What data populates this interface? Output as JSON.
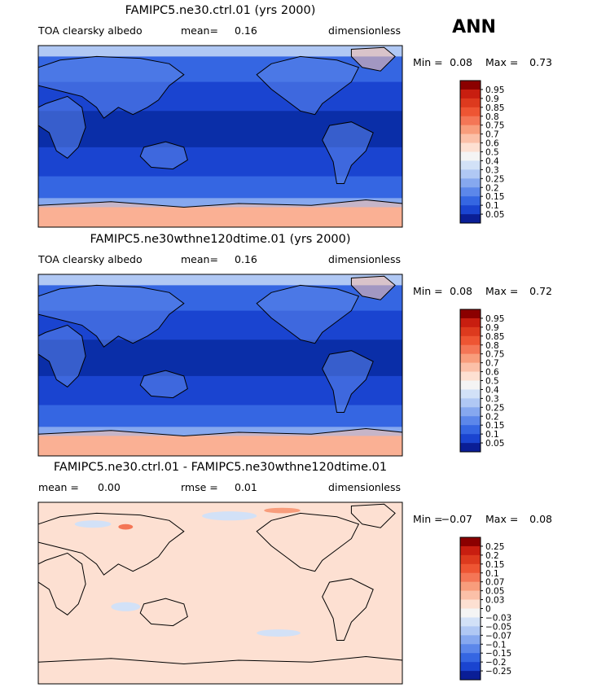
{
  "season": "ANN",
  "panels": [
    {
      "title": "FAMIPC5.ne30.ctrl.01 (yrs 2000)",
      "left_label": "TOA clearsky albedo",
      "stat_label": "mean=",
      "stat_value": "0.16",
      "stat2_label": "",
      "stat2_value": "",
      "units": "dimensionless",
      "min_label": "Min =",
      "min_value": "0.08",
      "max_label": "Max =",
      "max_value": "0.73",
      "colorbar": {
        "labels": [
          "0.95",
          "0.9",
          "0.85",
          "0.8",
          "0.75",
          "0.7",
          "0.6",
          "0.5",
          "0.4",
          "0.3",
          "0.25",
          "0.2",
          "0.15",
          "0.1",
          "0.05"
        ],
        "colors": [
          "#8b0000",
          "#c81e10",
          "#dd3a1e",
          "#ee5533",
          "#f47656",
          "#f89d7c",
          "#fbc0a8",
          "#fde0d2",
          "#f4f4f4",
          "#d2e1f7",
          "#b0c8f4",
          "#86a8ef",
          "#5c87ea",
          "#3566e2",
          "#1a44d0",
          "#0a1e96"
        ]
      }
    },
    {
      "title": "FAMIPC5.ne30wthne120dtime.01 (yrs 2000)",
      "left_label": "TOA clearsky albedo",
      "stat_label": "mean=",
      "stat_value": "0.16",
      "stat2_label": "",
      "stat2_value": "",
      "units": "dimensionless",
      "min_label": "Min =",
      "min_value": "0.08",
      "max_label": "Max =",
      "max_value": "0.72",
      "colorbar": {
        "labels": [
          "0.95",
          "0.9",
          "0.85",
          "0.8",
          "0.75",
          "0.7",
          "0.6",
          "0.5",
          "0.4",
          "0.3",
          "0.25",
          "0.2",
          "0.15",
          "0.1",
          "0.05"
        ],
        "colors": [
          "#8b0000",
          "#c81e10",
          "#dd3a1e",
          "#ee5533",
          "#f47656",
          "#f89d7c",
          "#fbc0a8",
          "#fde0d2",
          "#f4f4f4",
          "#d2e1f7",
          "#b0c8f4",
          "#86a8ef",
          "#5c87ea",
          "#3566e2",
          "#1a44d0",
          "#0a1e96"
        ]
      }
    },
    {
      "title": "FAMIPC5.ne30.ctrl.01 - FAMIPC5.ne30wthne120dtime.01",
      "left_label": "mean =",
      "stat_label": "",
      "stat_value": "0.00",
      "stat2_label": "rmse =",
      "stat2_value": "0.01",
      "units": "dimensionless",
      "min_label": "Min =",
      "min_value": "−0.07",
      "max_label": "Max =",
      "max_value": "0.08",
      "colorbar": {
        "labels": [
          "0.25",
          "0.2",
          "0.15",
          "0.1",
          "0.07",
          "0.05",
          "0.03",
          "0",
          "−0.03",
          "−0.05",
          "−0.07",
          "−0.1",
          "−0.15",
          "−0.2",
          "−0.25"
        ],
        "colors": [
          "#8b0000",
          "#c81e10",
          "#dd3a1e",
          "#ee5533",
          "#f47656",
          "#f89d7c",
          "#fbc0a8",
          "#fde0d2",
          "#f4f4f4",
          "#d2e1f7",
          "#b0c8f4",
          "#86a8ef",
          "#5c87ea",
          "#3566e2",
          "#1a44d0",
          "#0a1e96"
        ]
      }
    }
  ],
  "chart_data": [
    {
      "type": "heatmap",
      "title": "FAMIPC5.ne30.ctrl.01 (yrs 2000)",
      "variable": "TOA clearsky albedo",
      "units": "dimensionless",
      "mean": 0.16,
      "min": 0.08,
      "max": 0.73,
      "contour_levels": [
        0.05,
        0.1,
        0.15,
        0.2,
        0.25,
        0.3,
        0.4,
        0.5,
        0.6,
        0.7,
        0.75,
        0.8,
        0.85,
        0.9,
        0.95
      ]
    },
    {
      "type": "heatmap",
      "title": "FAMIPC5.ne30wthne120dtime.01 (yrs 2000)",
      "variable": "TOA clearsky albedo",
      "units": "dimensionless",
      "mean": 0.16,
      "min": 0.08,
      "max": 0.72,
      "contour_levels": [
        0.05,
        0.1,
        0.15,
        0.2,
        0.25,
        0.3,
        0.4,
        0.5,
        0.6,
        0.7,
        0.75,
        0.8,
        0.85,
        0.9,
        0.95
      ]
    },
    {
      "type": "heatmap",
      "title": "FAMIPC5.ne30.ctrl.01 - FAMIPC5.ne30wthne120dtime.01",
      "units": "dimensionless",
      "mean": 0.0,
      "rmse": 0.01,
      "min": -0.07,
      "max": 0.08,
      "contour_levels": [
        -0.25,
        -0.2,
        -0.15,
        -0.1,
        -0.07,
        -0.05,
        -0.03,
        0,
        0.03,
        0.05,
        0.07,
        0.1,
        0.15,
        0.2,
        0.25
      ]
    }
  ]
}
